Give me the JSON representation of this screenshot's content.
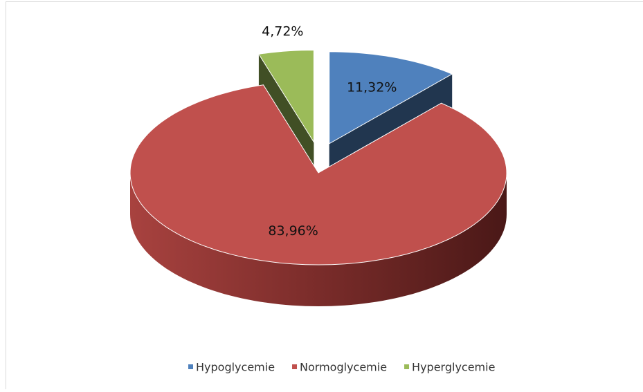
{
  "chart_data": {
    "type": "pie",
    "categories": [
      "Hypoglycemie",
      "Normoglycemie",
      "Hyperglycemie"
    ],
    "values": [
      11.32,
      83.96,
      4.72
    ],
    "value_labels": [
      "11,32%",
      "83,96%",
      "4,72%"
    ],
    "colors": [
      "#4f81bd",
      "#c0504d",
      "#9bbb59"
    ],
    "exploded": [
      true,
      false,
      true
    ],
    "legend": "bottom"
  }
}
